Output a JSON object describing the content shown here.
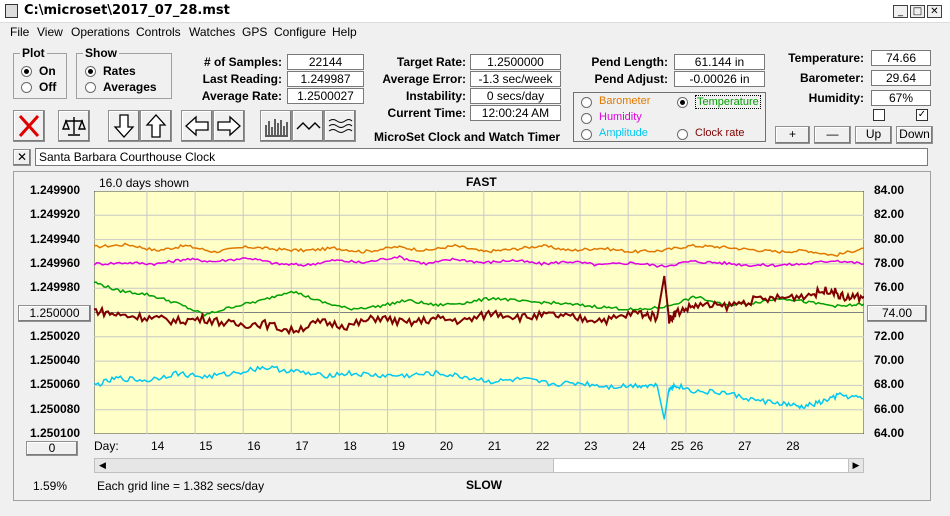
{
  "window": {
    "title": "C:\\microset\\2017_07_28.mst",
    "min": "_",
    "max": "□",
    "close": "✕"
  },
  "menu": [
    "File",
    "View",
    "Operations",
    "Controls",
    "Watches",
    "GPS",
    "Configure",
    "Help"
  ],
  "plot_group": {
    "title": "Plot",
    "on": "On",
    "off": "Off",
    "selected": "On"
  },
  "show_group": {
    "title": "Show",
    "rates": "Rates",
    "averages": "Averages",
    "selected": "Rates"
  },
  "stats": {
    "samples_label": "# of Samples:",
    "samples": "22144",
    "last_label": "Last Reading:",
    "last": "1.249987",
    "avg_label": "Average Rate:",
    "avg": "1.2500027",
    "target_label": "Target Rate:",
    "target": "1.2500000",
    "avgerr_label": "Average Error:",
    "avgerr": "-1.3 sec/week",
    "instab_label": "Instability:",
    "instab": "0 secs/day",
    "time_label": "Current Time:",
    "time": "12:00:24 AM",
    "pendlen_label": "Pend Length:",
    "pendlen": "61.144 in",
    "pendadj_label": "Pend Adjust:",
    "pendadj": "-0.00026 in",
    "temp_label": "Temperature:",
    "temp": "74.66",
    "baro_label": "Barometer:",
    "baro": "29.64",
    "hum_label": "Humidity:",
    "hum": "67%",
    "subtitle": "MicroSet Clock and Watch Timer"
  },
  "sensors": {
    "barometer": "Barometer",
    "temperature": "Temperature",
    "humidity": "Humidity",
    "amplitude": "Amplitude",
    "clockrate": "Clock rate",
    "selected": "Temperature",
    "colors": {
      "barometer": "#e07800",
      "temperature": "#00a000",
      "humidity": "#e000e0",
      "amplitude": "#00c8f0",
      "clockrate": "#800000"
    }
  },
  "adjust_buttons": {
    "plus": "+",
    "minus": "—",
    "up": "Up",
    "down": "Down"
  },
  "toolbar_icons": [
    "clear-icon",
    "balance-scale-icon",
    "arrow-down-icon",
    "arrow-up-icon",
    "arrow-left-icon",
    "arrow-right-icon",
    "bar-graph-icon",
    "line-wave-icon",
    "multi-wave-icon"
  ],
  "watch_name": "Santa Barbara Courthouse Clock",
  "chart": {
    "days_shown": "16.0 days shown",
    "fast": "FAST",
    "slow": "SLOW",
    "center_left": "1.250000",
    "center_right": "74.00",
    "zero_btn": "0",
    "grid_line": "Each grid line = 1.382 secs/day",
    "percent": "1.59%",
    "day_label": "Day:"
  },
  "chart_data": {
    "type": "line",
    "left_axis": [
      "1.249900",
      "1.249920",
      "1.249940",
      "1.249960",
      "1.249980",
      "1.250000",
      "1.250020",
      "1.250040",
      "1.250060",
      "1.250080",
      "1.250100"
    ],
    "right_axis": [
      "84.00",
      "82.00",
      "80.00",
      "78.00",
      "76.00",
      "74.00",
      "72.00",
      "70.00",
      "68.00",
      "66.00",
      "64.00"
    ],
    "days": [
      "14",
      "15",
      "16",
      "17",
      "18",
      "19",
      "20",
      "21",
      "22",
      "23",
      "24",
      "25",
      "26",
      "27",
      "28"
    ],
    "day_positions": [
      13.6,
      14.6,
      15.6,
      16.6,
      17.6,
      18.6,
      19.6,
      20.6,
      21.6,
      22.6,
      23.6,
      24.4,
      24.8,
      25.8,
      26.8
    ],
    "x_range": [
      12.5,
      28.5
    ],
    "right_range": [
      64,
      84
    ],
    "grid": true,
    "series": [
      {
        "key": "barometer",
        "color": "#e07800",
        "x": [
          12.5,
          13.2,
          13.8,
          14.4,
          15.0,
          15.7,
          16.3,
          16.9,
          17.5,
          18.1,
          18.8,
          19.4,
          20.0,
          20.6,
          21.2,
          21.8,
          22.4,
          23.0,
          23.7,
          24.3,
          24.9,
          25.5,
          26.1,
          26.7,
          27.3,
          27.9,
          28.5
        ],
        "y": [
          79.4,
          79.6,
          79.1,
          79.5,
          79.0,
          79.4,
          79.2,
          79.1,
          79.3,
          79.0,
          79.4,
          79.1,
          79.5,
          79.0,
          79.2,
          79.5,
          79.1,
          79.3,
          79.0,
          79.1,
          79.5,
          79.4,
          79.2,
          79.0,
          79.1,
          78.7,
          79.3
        ]
      },
      {
        "key": "humidity",
        "color": "#e000e0",
        "x": [
          12.5,
          13.2,
          13.8,
          14.4,
          15.0,
          15.7,
          16.3,
          16.9,
          17.5,
          18.1,
          18.8,
          19.4,
          20.0,
          20.6,
          21.2,
          21.8,
          22.4,
          23.0,
          23.7,
          24.3,
          24.9,
          25.5,
          26.1,
          26.7,
          27.3,
          27.9,
          28.5
        ],
        "y": [
          78.0,
          78.1,
          78.0,
          78.4,
          78.2,
          78.5,
          78.0,
          77.9,
          78.3,
          78.1,
          78.6,
          78.0,
          78.4,
          78.1,
          78.3,
          78.0,
          78.2,
          77.9,
          78.1,
          77.8,
          78.2,
          78.1,
          77.9,
          77.9,
          78.0,
          78.3,
          78.0
        ]
      },
      {
        "key": "temperature",
        "color": "#00a000",
        "x": [
          12.5,
          13.0,
          13.6,
          14.2,
          14.8,
          15.4,
          16.0,
          16.6,
          17.2,
          17.8,
          18.4,
          19.0,
          19.6,
          20.2,
          20.8,
          21.4,
          22.0,
          22.6,
          23.2,
          23.8,
          24.4,
          25.0,
          25.6,
          26.2,
          26.8,
          27.4,
          28.0,
          28.5
        ],
        "y": [
          76.5,
          75.8,
          75.5,
          74.8,
          73.8,
          74.5,
          75.0,
          75.8,
          74.9,
          74.3,
          74.5,
          75.0,
          74.6,
          74.8,
          75.2,
          74.9,
          74.8,
          74.6,
          74.4,
          74.2,
          74.5,
          75.3,
          74.6,
          74.8,
          75.2,
          74.8,
          74.5,
          74.7
        ]
      },
      {
        "key": "clockrate",
        "color": "#800000",
        "x": [
          12.5,
          13.0,
          13.6,
          14.2,
          14.8,
          15.4,
          16.0,
          16.6,
          17.2,
          17.8,
          18.4,
          19.0,
          19.6,
          20.2,
          20.8,
          21.4,
          22.0,
          22.6,
          23.2,
          23.8,
          24.2,
          24.35,
          24.45,
          24.6,
          25.0,
          25.6,
          26.2,
          26.8,
          27.4,
          27.8,
          28.1,
          28.5
        ],
        "y": [
          74.2,
          73.8,
          73.6,
          73.3,
          73.5,
          73.0,
          73.1,
          72.5,
          73.2,
          72.9,
          73.6,
          73.1,
          73.5,
          73.3,
          74.0,
          73.6,
          73.8,
          73.5,
          73.4,
          74.0,
          73.6,
          77.0,
          73.4,
          74.0,
          74.6,
          74.5,
          75.0,
          75.2,
          75.5,
          75.9,
          75.2,
          75.3
        ]
      },
      {
        "key": "amplitude",
        "color": "#00c8f0",
        "x": [
          12.5,
          13.0,
          13.6,
          14.2,
          14.8,
          15.4,
          16.0,
          16.6,
          17.2,
          17.8,
          18.4,
          19.0,
          19.6,
          20.2,
          20.8,
          21.4,
          22.0,
          22.6,
          23.2,
          23.8,
          24.2,
          24.35,
          24.45,
          24.6,
          25.0,
          25.6,
          26.2,
          26.8,
          27.2,
          27.6,
          28.0,
          28.5
        ],
        "y": [
          68.0,
          68.6,
          68.4,
          69.0,
          68.7,
          69.0,
          69.5,
          69.2,
          68.8,
          69.0,
          68.8,
          68.8,
          69.0,
          68.7,
          68.3,
          68.5,
          68.1,
          68.2,
          67.9,
          68.0,
          68.0,
          65.2,
          67.8,
          68.0,
          67.5,
          67.4,
          66.8,
          66.5,
          66.2,
          66.6,
          67.2,
          66.9
        ]
      }
    ]
  }
}
